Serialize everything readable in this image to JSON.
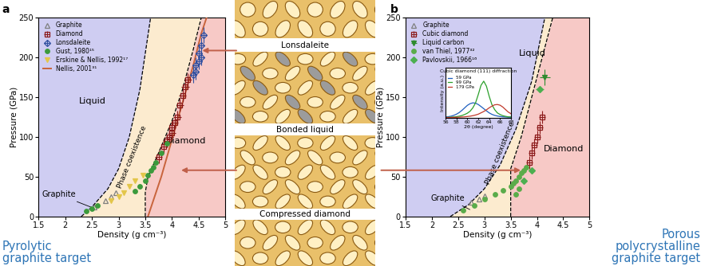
{
  "chart_data": [
    {
      "type": "scatter",
      "label": "a",
      "x_label": "Density (g cm⁻³)",
      "y_label": "Pressure (GPa)",
      "caption": "Pyrolytic\ngraphite target",
      "xlim": [
        1.5,
        5
      ],
      "xticks": [
        1.5,
        2,
        2.5,
        3,
        3.5,
        4,
        4.5,
        5
      ],
      "ylim": [
        0,
        250
      ],
      "yticks": [
        0,
        50,
        100,
        150,
        200,
        250
      ],
      "legend": "upper left",
      "region_labels": [
        "Liquid",
        "Diamond",
        "Graphite",
        "Phase coexistence"
      ],
      "phase_boundaries": [
        {
          "x": [
            2.3,
            2.5,
            2.8,
            3.0,
            3.2,
            3.4,
            3.6
          ],
          "y": [
            0,
            12,
            35,
            60,
            100,
            160,
            250
          ]
        },
        {
          "x": [
            3.5,
            3.5,
            3.55,
            3.75,
            4.0,
            4.2,
            4.4,
            4.55
          ],
          "y": [
            0,
            30,
            50,
            80,
            120,
            160,
            210,
            250
          ]
        }
      ],
      "series": [
        {
          "name": "Graphite",
          "color": "#7f7f7f",
          "marker": "triangle_open",
          "x": [
            2.55,
            2.75,
            2.85,
            2.95
          ],
          "y": [
            12,
            20,
            25,
            30
          ]
        },
        {
          "name": "Diamond",
          "color": "#8b1a1a",
          "marker": "square_open",
          "x": [
            3.75,
            3.85,
            3.9,
            3.95,
            4.0,
            4.0,
            4.05,
            4.1,
            4.15,
            4.2,
            4.25,
            4.3
          ],
          "y": [
            75,
            88,
            95,
            100,
            105,
            112,
            118,
            125,
            140,
            152,
            163,
            172
          ],
          "x_err": [
            0.07,
            0.07,
            0.07,
            0.07,
            0.07,
            0.07,
            0.07,
            0.07,
            0.07,
            0.07,
            0.07,
            0.07
          ],
          "y_err": [
            8,
            8,
            8,
            8,
            8,
            8,
            8,
            8,
            8,
            8,
            8,
            8
          ]
        },
        {
          "name": "Lonsdaleite",
          "color": "#2f4fa0",
          "marker": "diamond_open",
          "x": [
            4.4,
            4.45,
            4.45,
            4.5,
            4.5,
            4.55,
            4.55,
            4.6
          ],
          "y": [
            178,
            182,
            190,
            195,
            205,
            200,
            215,
            228
          ],
          "x_err": [
            0.06,
            0.06,
            0.06,
            0.06,
            0.06,
            0.06,
            0.06,
            0.06
          ],
          "y_err": [
            10,
            10,
            10,
            10,
            10,
            10,
            10,
            10
          ]
        },
        {
          "name": "Gust, 1980¹⁵",
          "color": "#3c9a3c",
          "marker": "circle",
          "x": [
            2.4,
            2.5,
            2.6,
            3.3,
            3.4,
            3.5,
            3.55,
            3.6,
            3.65,
            3.7,
            3.8,
            3.9
          ],
          "y": [
            7,
            10,
            14,
            32,
            38,
            45,
            52,
            58,
            62,
            68,
            80,
            92
          ]
        },
        {
          "name": "Erskine & Nellis, 1992¹⁷",
          "color": "#e3c64a",
          "marker": "triangle_down",
          "x": [
            2.85,
            3.0,
            3.1,
            3.2,
            3.3,
            3.45
          ],
          "y": [
            20,
            25,
            30,
            38,
            45,
            52
          ]
        },
        {
          "name": "Nellis, 2001³¹",
          "color": "#c8643c",
          "type": "line",
          "line_style": "solid",
          "x": [
            3.55,
            3.65,
            3.8,
            3.95,
            4.1,
            4.25,
            4.4,
            4.55,
            4.65
          ],
          "y": [
            0,
            20,
            50,
            85,
            120,
            155,
            190,
            230,
            250
          ]
        }
      ]
    },
    {
      "type": "scatter",
      "label": "b",
      "x_label": "Density (g cm⁻³)",
      "y_label": "Pressure (GPa)",
      "caption": "Porous\npolycrystalline\ngraphite target",
      "xlim": [
        1.5,
        5
      ],
      "xticks": [
        1.5,
        2,
        2.5,
        3,
        3.5,
        4,
        4.5,
        5
      ],
      "ylim": [
        0,
        250
      ],
      "yticks": [
        0,
        50,
        100,
        150,
        200,
        250
      ],
      "legend": "upper left",
      "region_labels": [
        "Liquid",
        "Diamond",
        "Graphite",
        "Phase coexistence"
      ],
      "phase_boundaries": [
        {
          "x": [
            2.35,
            2.7,
            3.0,
            3.3,
            3.6,
            3.9,
            4.15
          ],
          "y": [
            0,
            15,
            35,
            65,
            110,
            170,
            250
          ]
        },
        {
          "x": [
            3.5,
            3.5,
            3.7,
            3.9,
            4.1,
            4.3
          ],
          "y": [
            0,
            60,
            100,
            150,
            200,
            250
          ]
        }
      ],
      "series": [
        {
          "name": "Graphite",
          "color": "#7f7f7f",
          "marker": "triangle_open",
          "x": [
            2.75,
            2.9,
            3.0
          ],
          "y": [
            18,
            22,
            26
          ]
        },
        {
          "name": "Cubic diamond",
          "color": "#8b1a1a",
          "marker": "square_open",
          "x": [
            3.85,
            3.9,
            3.95,
            4.0,
            4.05,
            4.1
          ],
          "y": [
            68,
            80,
            90,
            100,
            112,
            125
          ],
          "x_err": [
            0.06,
            0.06,
            0.06,
            0.06,
            0.06,
            0.06
          ],
          "y_err": [
            8,
            8,
            8,
            8,
            8,
            8
          ]
        },
        {
          "name": "Liquid carbon",
          "color": "#2e8b2e",
          "marker": "triangle_down",
          "x": [
            4.15
          ],
          "y": [
            175
          ],
          "x_err": [
            0.1
          ],
          "y_err": [
            10
          ]
        },
        {
          "name": "van Thiel, 1977³²",
          "color": "#5aac4a",
          "marker": "circle",
          "x": [
            2.6,
            2.8,
            3.0,
            3.2,
            3.35,
            3.5,
            3.55,
            3.6,
            3.65,
            3.7,
            3.75,
            3.8,
            3.6,
            3.65
          ],
          "y": [
            8,
            14,
            22,
            28,
            33,
            38,
            42,
            45,
            50,
            55,
            58,
            62,
            28,
            35
          ]
        },
        {
          "name": "Pavlovskii, 1966¹⁶",
          "color": "#4caf50",
          "marker": "diamond",
          "x": [
            3.75,
            3.9,
            4.05
          ],
          "y": [
            45,
            58,
            160
          ],
          "x_err": [
            0.05,
            0.05,
            0.08
          ]
        }
      ]
    },
    {
      "type": "line",
      "title": "Cubic diamond (111) diffraction",
      "x_label": "2θ (degree)",
      "y_label": "Intensity (a.u.)",
      "xlim": [
        56,
        68
      ],
      "xticks": [
        56,
        58,
        60,
        62,
        64,
        66,
        68
      ],
      "ylim": [
        0,
        3
      ],
      "yticks": [],
      "tick_labels": "x",
      "legend": "upper left",
      "x": [
        56,
        56.5,
        57,
        57.5,
        58,
        58.5,
        59,
        59.5,
        60,
        60.5,
        61,
        61.5,
        62,
        62.5,
        63,
        63.5,
        64,
        64.5,
        65,
        65.5,
        66,
        66.5,
        67,
        67.5,
        68
      ],
      "series": [
        {
          "name": "59 GPa",
          "color": "#1f5fbf",
          "values": [
            0.05,
            0.07,
            0.1,
            0.15,
            0.22,
            0.32,
            0.45,
            0.6,
            0.75,
            0.85,
            0.9,
            0.88,
            0.8,
            0.68,
            0.55,
            0.42,
            0.3,
            0.21,
            0.15,
            0.11,
            0.08,
            0.06,
            0.05,
            0.04,
            0.04
          ]
        },
        {
          "name": "99 GPa",
          "color": "#2ca02c",
          "values": [
            0.02,
            0.03,
            0.04,
            0.05,
            0.07,
            0.1,
            0.14,
            0.2,
            0.28,
            0.4,
            0.6,
            0.9,
            1.4,
            1.95,
            2.2,
            1.9,
            1.3,
            0.8,
            0.5,
            0.3,
            0.2,
            0.13,
            0.09,
            0.06,
            0.05
          ]
        },
        {
          "name": "179 GPa",
          "color": "#c0392b",
          "values": [
            0.02,
            0.02,
            0.02,
            0.03,
            0.03,
            0.04,
            0.05,
            0.06,
            0.08,
            0.1,
            0.13,
            0.17,
            0.22,
            0.3,
            0.38,
            0.48,
            0.6,
            0.7,
            0.78,
            0.8,
            0.76,
            0.65,
            0.5,
            0.35,
            0.25
          ]
        }
      ]
    }
  ],
  "images": {
    "labels": [
      "Lonsdaleite",
      "Bonded liquid",
      "Compressed diamond"
    ]
  }
}
